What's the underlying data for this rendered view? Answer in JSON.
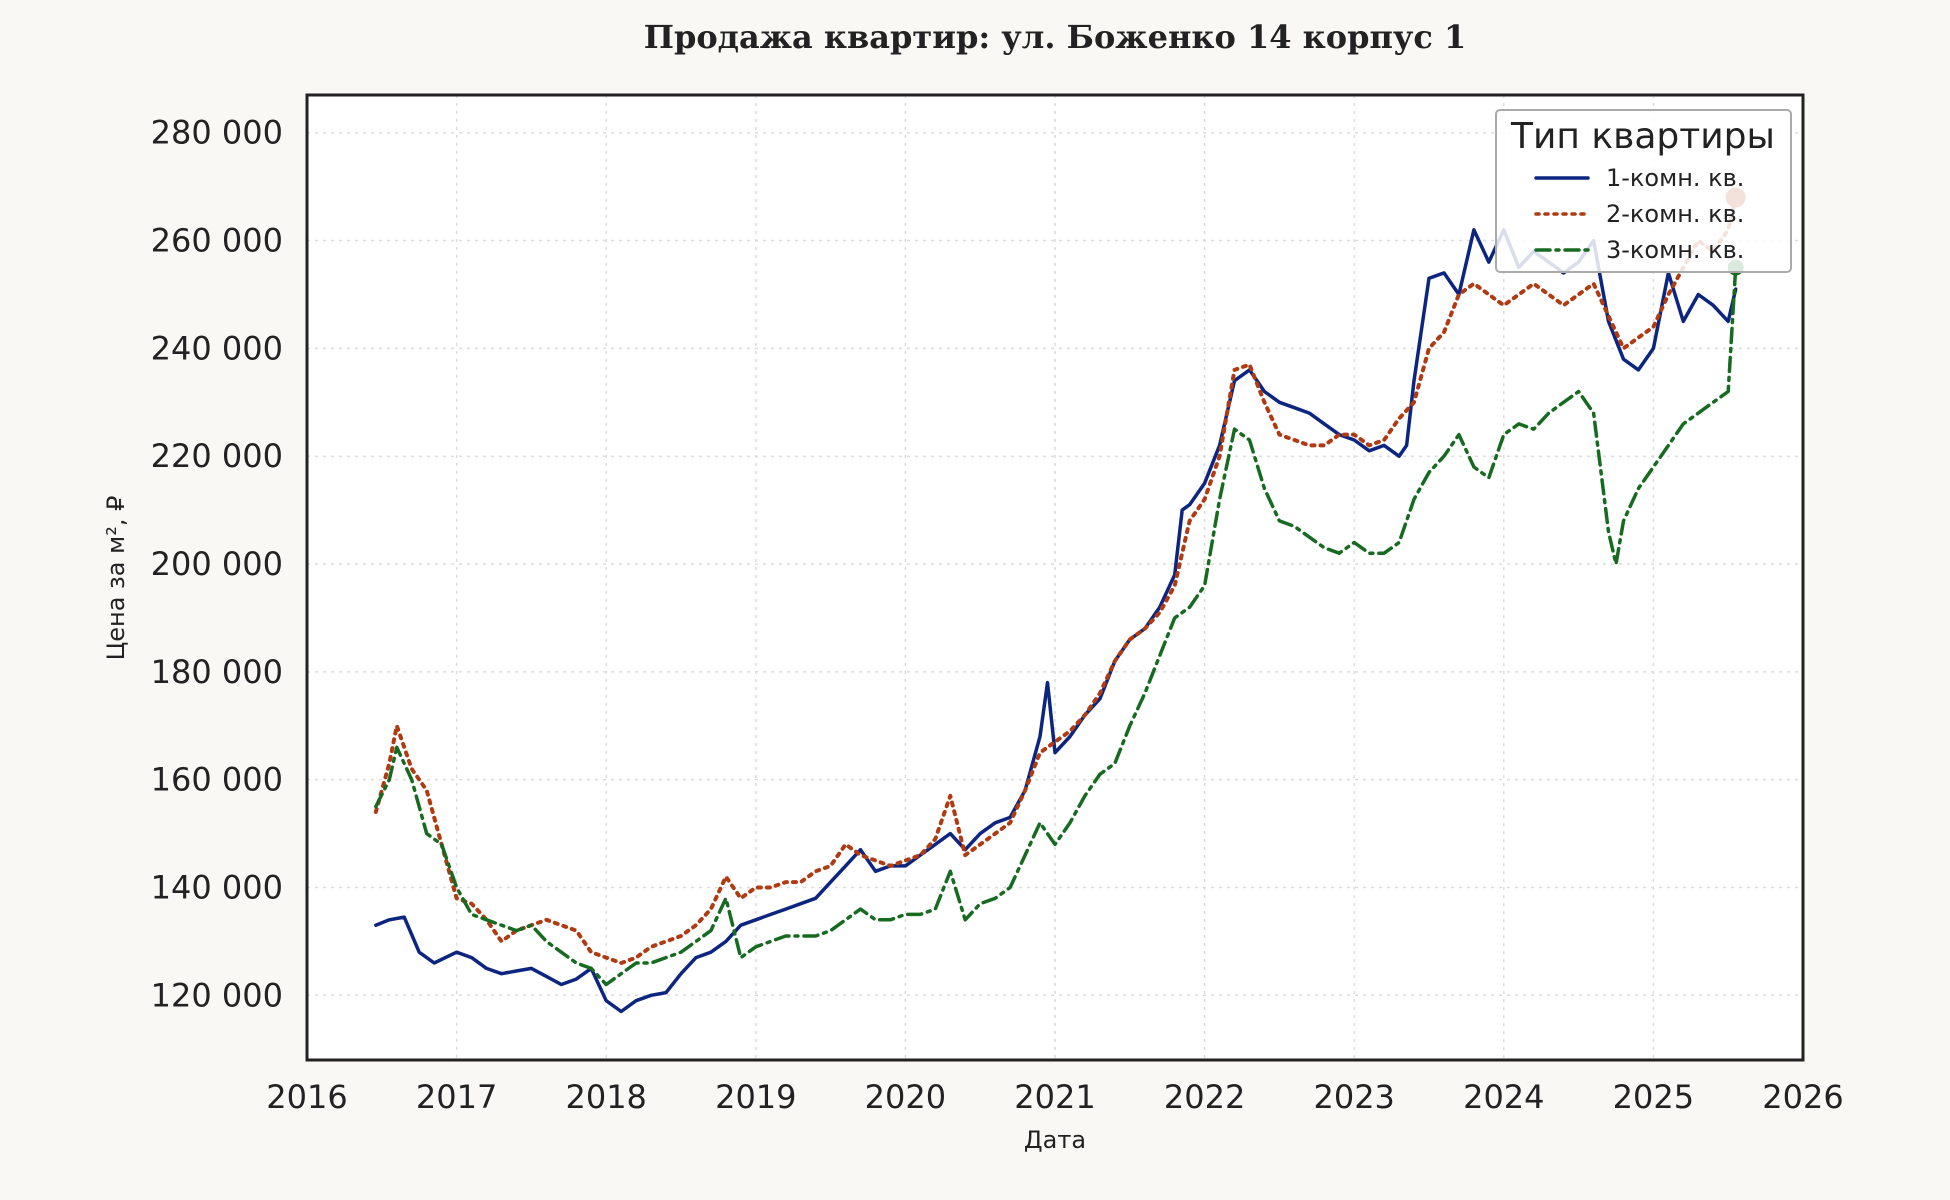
{
  "chart_data": {
    "type": "line",
    "title": "Продажа квартир: ул. Боженко 14 корпус 1",
    "xlabel": "Дата",
    "ylabel": "Цена за м², ₽",
    "xlim": [
      2016,
      2026
    ],
    "ylim": [
      108000,
      287000
    ],
    "x_ticks": [
      "2016",
      "2017",
      "2018",
      "2019",
      "2020",
      "2021",
      "2022",
      "2023",
      "2024",
      "2025",
      "2026"
    ],
    "y_ticks": [
      {
        "value": 120000,
        "label": "120 000"
      },
      {
        "value": 140000,
        "label": "140 000"
      },
      {
        "value": 160000,
        "label": "160 000"
      },
      {
        "value": 180000,
        "label": "180 000"
      },
      {
        "value": 200000,
        "label": "200 000"
      },
      {
        "value": 220000,
        "label": "220 000"
      },
      {
        "value": 240000,
        "label": "240 000"
      },
      {
        "value": 260000,
        "label": "260 000"
      },
      {
        "value": 280000,
        "label": "280 000"
      }
    ],
    "grid": true,
    "legend": {
      "title": "Тип квартиры",
      "position": "top-right"
    },
    "series": [
      {
        "name": "1-комн. кв.",
        "color": "#0c2580",
        "style": "solid",
        "points": [
          [
            2016.46,
            133000
          ],
          [
            2016.55,
            134000
          ],
          [
            2016.65,
            134500
          ],
          [
            2016.75,
            128000
          ],
          [
            2016.85,
            126000
          ],
          [
            2017.0,
            128000
          ],
          [
            2017.1,
            127000
          ],
          [
            2017.2,
            125000
          ],
          [
            2017.3,
            124000
          ],
          [
            2017.4,
            124500
          ],
          [
            2017.5,
            125000
          ],
          [
            2017.6,
            123500
          ],
          [
            2017.7,
            122000
          ],
          [
            2017.8,
            123000
          ],
          [
            2017.9,
            125000
          ],
          [
            2018.0,
            119000
          ],
          [
            2018.1,
            117000
          ],
          [
            2018.2,
            119000
          ],
          [
            2018.3,
            120000
          ],
          [
            2018.4,
            120500
          ],
          [
            2018.5,
            124000
          ],
          [
            2018.6,
            127000
          ],
          [
            2018.7,
            128000
          ],
          [
            2018.8,
            130000
          ],
          [
            2018.9,
            133000
          ],
          [
            2019.0,
            134000
          ],
          [
            2019.1,
            135000
          ],
          [
            2019.2,
            136000
          ],
          [
            2019.3,
            137000
          ],
          [
            2019.4,
            138000
          ],
          [
            2019.5,
            141000
          ],
          [
            2019.6,
            144000
          ],
          [
            2019.7,
            147000
          ],
          [
            2019.8,
            143000
          ],
          [
            2019.9,
            144000
          ],
          [
            2020.0,
            144000
          ],
          [
            2020.1,
            146000
          ],
          [
            2020.2,
            148000
          ],
          [
            2020.3,
            150000
          ],
          [
            2020.4,
            147000
          ],
          [
            2020.5,
            150000
          ],
          [
            2020.6,
            152000
          ],
          [
            2020.7,
            153000
          ],
          [
            2020.8,
            158000
          ],
          [
            2020.9,
            168000
          ],
          [
            2020.95,
            178000
          ],
          [
            2021.0,
            165000
          ],
          [
            2021.1,
            168000
          ],
          [
            2021.2,
            172000
          ],
          [
            2021.3,
            175000
          ],
          [
            2021.4,
            182000
          ],
          [
            2021.5,
            186000
          ],
          [
            2021.6,
            188000
          ],
          [
            2021.7,
            192000
          ],
          [
            2021.8,
            198000
          ],
          [
            2021.85,
            210000
          ],
          [
            2021.9,
            211000
          ],
          [
            2022.0,
            215000
          ],
          [
            2022.1,
            222000
          ],
          [
            2022.2,
            234000
          ],
          [
            2022.3,
            236000
          ],
          [
            2022.4,
            232000
          ],
          [
            2022.5,
            230000
          ],
          [
            2022.6,
            229000
          ],
          [
            2022.7,
            228000
          ],
          [
            2022.8,
            226000
          ],
          [
            2022.9,
            224000
          ],
          [
            2023.0,
            223000
          ],
          [
            2023.1,
            221000
          ],
          [
            2023.2,
            222000
          ],
          [
            2023.3,
            220000
          ],
          [
            2023.35,
            222000
          ],
          [
            2023.4,
            234000
          ],
          [
            2023.5,
            253000
          ],
          [
            2023.6,
            254000
          ],
          [
            2023.7,
            250000
          ],
          [
            2023.8,
            262000
          ],
          [
            2023.9,
            256000
          ],
          [
            2024.0,
            262000
          ],
          [
            2024.1,
            255000
          ],
          [
            2024.2,
            258000
          ],
          [
            2024.3,
            256000
          ],
          [
            2024.4,
            254000
          ],
          [
            2024.5,
            256000
          ],
          [
            2024.6,
            260000
          ],
          [
            2024.7,
            245000
          ],
          [
            2024.8,
            238000
          ],
          [
            2024.9,
            236000
          ],
          [
            2025.0,
            240000
          ],
          [
            2025.1,
            254000
          ],
          [
            2025.2,
            245000
          ],
          [
            2025.3,
            250000
          ],
          [
            2025.4,
            248000
          ],
          [
            2025.5,
            245000
          ],
          [
            2025.55,
            251000
          ]
        ]
      },
      {
        "name": "2-комн. кв.",
        "color": "#b03a12",
        "style": "dotted",
        "points": [
          [
            2016.46,
            154000
          ],
          [
            2016.55,
            163000
          ],
          [
            2016.6,
            170000
          ],
          [
            2016.7,
            162000
          ],
          [
            2016.8,
            158000
          ],
          [
            2016.9,
            148000
          ],
          [
            2017.0,
            138000
          ],
          [
            2017.1,
            137000
          ],
          [
            2017.2,
            134000
          ],
          [
            2017.3,
            130000
          ],
          [
            2017.4,
            132000
          ],
          [
            2017.5,
            133000
          ],
          [
            2017.6,
            134000
          ],
          [
            2017.7,
            133000
          ],
          [
            2017.8,
            132000
          ],
          [
            2017.9,
            128000
          ],
          [
            2018.0,
            127000
          ],
          [
            2018.1,
            126000
          ],
          [
            2018.2,
            127000
          ],
          [
            2018.3,
            129000
          ],
          [
            2018.4,
            130000
          ],
          [
            2018.5,
            131000
          ],
          [
            2018.6,
            133000
          ],
          [
            2018.7,
            136000
          ],
          [
            2018.8,
            142000
          ],
          [
            2018.9,
            138000
          ],
          [
            2019.0,
            140000
          ],
          [
            2019.1,
            140000
          ],
          [
            2019.2,
            141000
          ],
          [
            2019.3,
            141000
          ],
          [
            2019.4,
            143000
          ],
          [
            2019.5,
            144000
          ],
          [
            2019.6,
            148000
          ],
          [
            2019.7,
            146000
          ],
          [
            2019.8,
            145000
          ],
          [
            2019.9,
            144000
          ],
          [
            2020.0,
            145000
          ],
          [
            2020.1,
            146000
          ],
          [
            2020.2,
            149000
          ],
          [
            2020.3,
            157000
          ],
          [
            2020.4,
            146000
          ],
          [
            2020.5,
            148000
          ],
          [
            2020.6,
            150000
          ],
          [
            2020.7,
            152000
          ],
          [
            2020.8,
            158000
          ],
          [
            2020.9,
            165000
          ],
          [
            2021.0,
            167000
          ],
          [
            2021.1,
            169000
          ],
          [
            2021.2,
            172000
          ],
          [
            2021.3,
            176000
          ],
          [
            2021.4,
            182000
          ],
          [
            2021.5,
            186000
          ],
          [
            2021.6,
            188000
          ],
          [
            2021.7,
            191000
          ],
          [
            2021.8,
            196000
          ],
          [
            2021.9,
            208000
          ],
          [
            2022.0,
            212000
          ],
          [
            2022.1,
            220000
          ],
          [
            2022.2,
            236000
          ],
          [
            2022.3,
            237000
          ],
          [
            2022.4,
            230000
          ],
          [
            2022.5,
            224000
          ],
          [
            2022.6,
            223000
          ],
          [
            2022.7,
            222000
          ],
          [
            2022.8,
            222000
          ],
          [
            2022.9,
            224000
          ],
          [
            2023.0,
            224000
          ],
          [
            2023.1,
            222000
          ],
          [
            2023.2,
            223000
          ],
          [
            2023.3,
            227000
          ],
          [
            2023.4,
            230000
          ],
          [
            2023.5,
            240000
          ],
          [
            2023.6,
            243000
          ],
          [
            2023.7,
            250000
          ],
          [
            2023.8,
            252000
          ],
          [
            2023.9,
            250000
          ],
          [
            2024.0,
            248000
          ],
          [
            2024.1,
            250000
          ],
          [
            2024.2,
            252000
          ],
          [
            2024.3,
            250000
          ],
          [
            2024.4,
            248000
          ],
          [
            2024.5,
            250000
          ],
          [
            2024.6,
            252000
          ],
          [
            2024.7,
            246000
          ],
          [
            2024.8,
            240000
          ],
          [
            2024.9,
            242000
          ],
          [
            2025.0,
            244000
          ],
          [
            2025.1,
            250000
          ],
          [
            2025.2,
            255000
          ],
          [
            2025.3,
            260000
          ],
          [
            2025.4,
            258000
          ],
          [
            2025.5,
            262000
          ],
          [
            2025.55,
            268000
          ]
        ]
      },
      {
        "name": "3-комн. кв.",
        "color": "#176b21",
        "style": "dashdot",
        "points": [
          [
            2016.46,
            155000
          ],
          [
            2016.55,
            160000
          ],
          [
            2016.6,
            166000
          ],
          [
            2016.7,
            160000
          ],
          [
            2016.8,
            150000
          ],
          [
            2016.9,
            148000
          ],
          [
            2017.0,
            140000
          ],
          [
            2017.1,
            135000
          ],
          [
            2017.2,
            134000
          ],
          [
            2017.3,
            133000
          ],
          [
            2017.4,
            132000
          ],
          [
            2017.5,
            133000
          ],
          [
            2017.6,
            130000
          ],
          [
            2017.7,
            128000
          ],
          [
            2017.8,
            126000
          ],
          [
            2017.9,
            125000
          ],
          [
            2018.0,
            122000
          ],
          [
            2018.1,
            124000
          ],
          [
            2018.2,
            126000
          ],
          [
            2018.3,
            126000
          ],
          [
            2018.4,
            127000
          ],
          [
            2018.5,
            128000
          ],
          [
            2018.6,
            130000
          ],
          [
            2018.7,
            132000
          ],
          [
            2018.8,
            138000
          ],
          [
            2018.9,
            127000
          ],
          [
            2019.0,
            129000
          ],
          [
            2019.1,
            130000
          ],
          [
            2019.2,
            131000
          ],
          [
            2019.3,
            131000
          ],
          [
            2019.4,
            131000
          ],
          [
            2019.5,
            132000
          ],
          [
            2019.6,
            134000
          ],
          [
            2019.7,
            136000
          ],
          [
            2019.8,
            134000
          ],
          [
            2019.9,
            134000
          ],
          [
            2020.0,
            135000
          ],
          [
            2020.1,
            135000
          ],
          [
            2020.2,
            136000
          ],
          [
            2020.3,
            143000
          ],
          [
            2020.4,
            134000
          ],
          [
            2020.5,
            137000
          ],
          [
            2020.6,
            138000
          ],
          [
            2020.7,
            140000
          ],
          [
            2020.8,
            146000
          ],
          [
            2020.9,
            152000
          ],
          [
            2021.0,
            148000
          ],
          [
            2021.1,
            152000
          ],
          [
            2021.2,
            157000
          ],
          [
            2021.3,
            161000
          ],
          [
            2021.4,
            163000
          ],
          [
            2021.5,
            170000
          ],
          [
            2021.6,
            176000
          ],
          [
            2021.7,
            183000
          ],
          [
            2021.8,
            190000
          ],
          [
            2021.9,
            192000
          ],
          [
            2022.0,
            196000
          ],
          [
            2022.1,
            212000
          ],
          [
            2022.2,
            225000
          ],
          [
            2022.3,
            223000
          ],
          [
            2022.4,
            214000
          ],
          [
            2022.5,
            208000
          ],
          [
            2022.6,
            207000
          ],
          [
            2022.7,
            205000
          ],
          [
            2022.8,
            203000
          ],
          [
            2022.9,
            202000
          ],
          [
            2023.0,
            204000
          ],
          [
            2023.1,
            202000
          ],
          [
            2023.2,
            202000
          ],
          [
            2023.3,
            204000
          ],
          [
            2023.4,
            212000
          ],
          [
            2023.5,
            217000
          ],
          [
            2023.6,
            220000
          ],
          [
            2023.7,
            224000
          ],
          [
            2023.8,
            218000
          ],
          [
            2023.9,
            216000
          ],
          [
            2024.0,
            224000
          ],
          [
            2024.1,
            226000
          ],
          [
            2024.2,
            225000
          ],
          [
            2024.3,
            228000
          ],
          [
            2024.4,
            230000
          ],
          [
            2024.5,
            232000
          ],
          [
            2024.6,
            228000
          ],
          [
            2024.7,
            206000
          ],
          [
            2024.75,
            200000
          ],
          [
            2024.8,
            208000
          ],
          [
            2024.9,
            214000
          ],
          [
            2025.0,
            218000
          ],
          [
            2025.1,
            222000
          ],
          [
            2025.2,
            226000
          ],
          [
            2025.3,
            228000
          ],
          [
            2025.4,
            230000
          ],
          [
            2025.5,
            232000
          ],
          [
            2025.55,
            255000
          ]
        ]
      }
    ],
    "end_markers": [
      {
        "series": "2-комн. кв.",
        "x": 2025.55,
        "y": 268000
      },
      {
        "series": "3-комн. кв.",
        "x": 2025.55,
        "y": 255000
      }
    ]
  }
}
